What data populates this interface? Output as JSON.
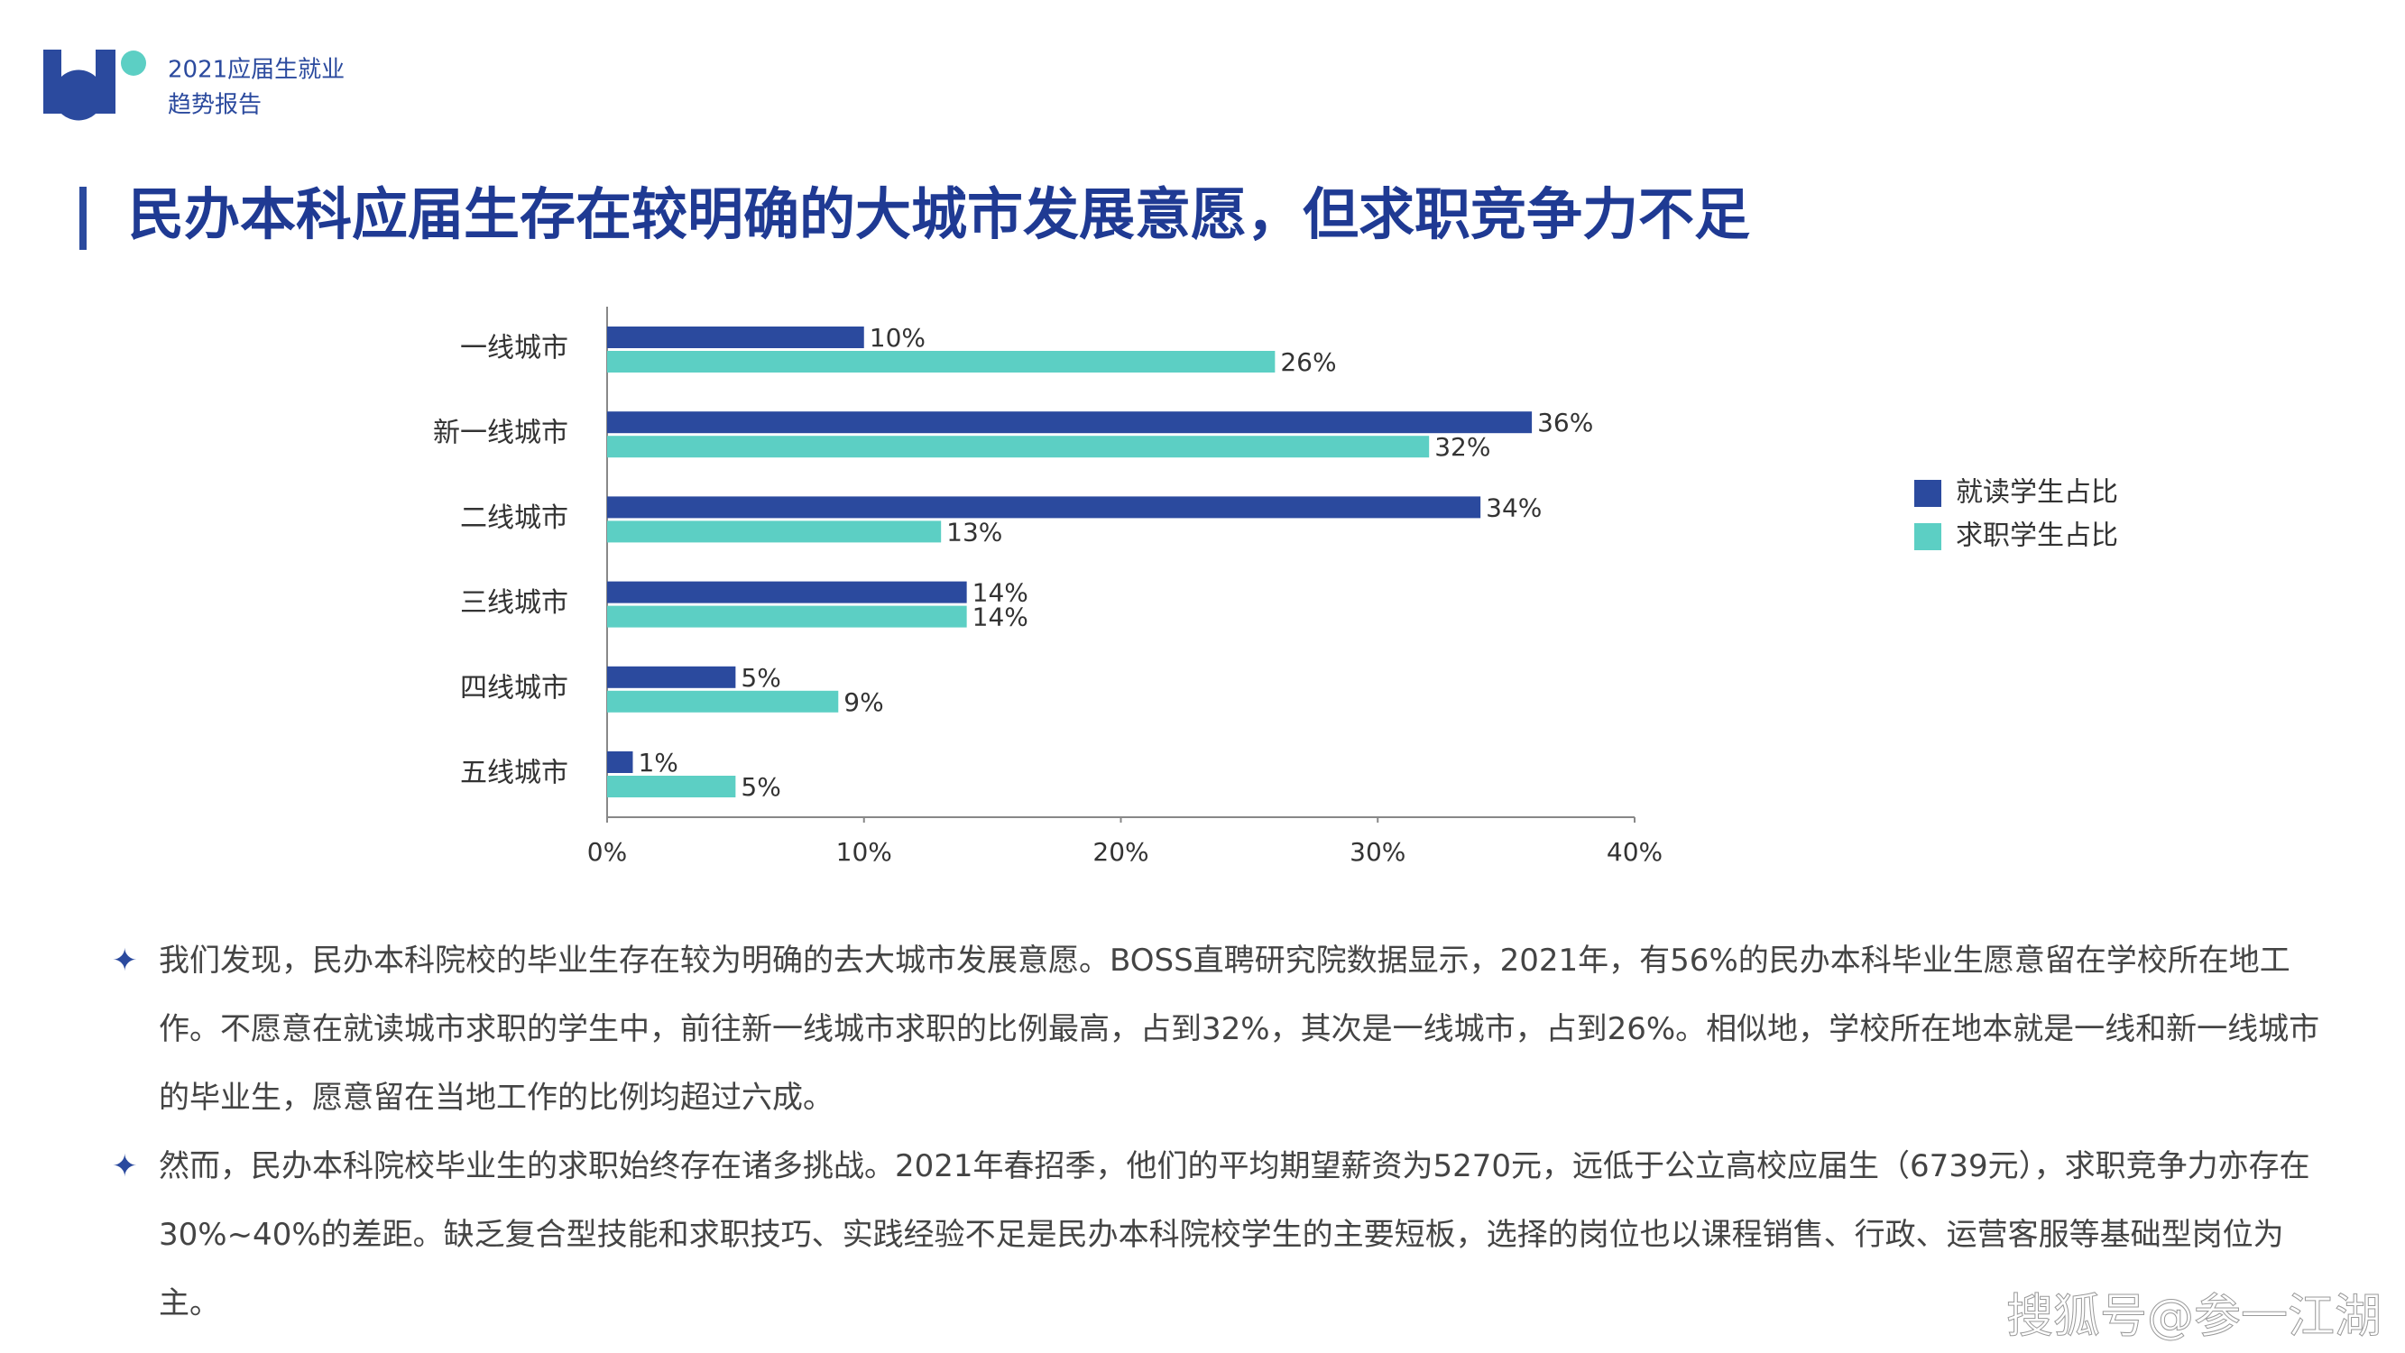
{
  "header": {
    "lines": [
      "2021应届生就业",
      "趋势报告"
    ]
  },
  "title": "民办本科应届生存在较明确的大城市发展意愿，但求职竞争力不足",
  "chart_data": {
    "type": "hbar",
    "categories": [
      "一线城市",
      "新一线城市",
      "二线城市",
      "三线城市",
      "四线城市",
      "五线城市"
    ],
    "series": [
      {
        "name": "就读学生占比",
        "color": "#2b4a9e",
        "values": [
          10,
          36,
          34,
          14,
          5,
          1
        ],
        "value_labels": [
          "10%",
          "36%",
          "34%",
          "14%",
          "5%",
          "1%"
        ]
      },
      {
        "name": "求职学生占比",
        "color": "#5ccfc4",
        "values": [
          26,
          32,
          13,
          14,
          9,
          5
        ],
        "value_labels": [
          "26%",
          "32%",
          "13%",
          "14%",
          "9%",
          "5%"
        ]
      }
    ],
    "xlim": [
      0,
      40
    ],
    "xticks": [
      {
        "value": 0,
        "label": "0%"
      },
      {
        "value": 10,
        "label": "10%"
      },
      {
        "value": 20,
        "label": "20%"
      },
      {
        "value": 30,
        "label": "30%"
      },
      {
        "value": 40,
        "label": "40%"
      }
    ],
    "legend": "right"
  },
  "paragraphs": [
    "我们发现，民办本科院校的毕业生存在较为明确的去大城市发展意愿。BOSS直聘研究院数据显示，2021年，有56%的民办本科毕业生愿意留在学校所在地工作。不愿意在就读城市求职的学生中，前往新一线城市求职的比例最高，占到32%，其次是一线城市，占到26%。相似地，学校所在地本就是一线和新一线城市的毕业生，愿意留在当地工作的比例均超过六成。",
    "然而，民办本科院校毕业生的求职始终存在诸多挑战。2021年春招季，他们的平均期望薪资为5270元，远低于公立高校应届生（6739元），求职竞争力亦存在30%~40%的差距。缺乏复合型技能和求职技巧、实践经验不足是民办本科院校学生的主要短板，选择的岗位也以课程销售、行政、运营客服等基础型岗位为主。"
  ],
  "watermark": "搜狐号@参一江湖"
}
